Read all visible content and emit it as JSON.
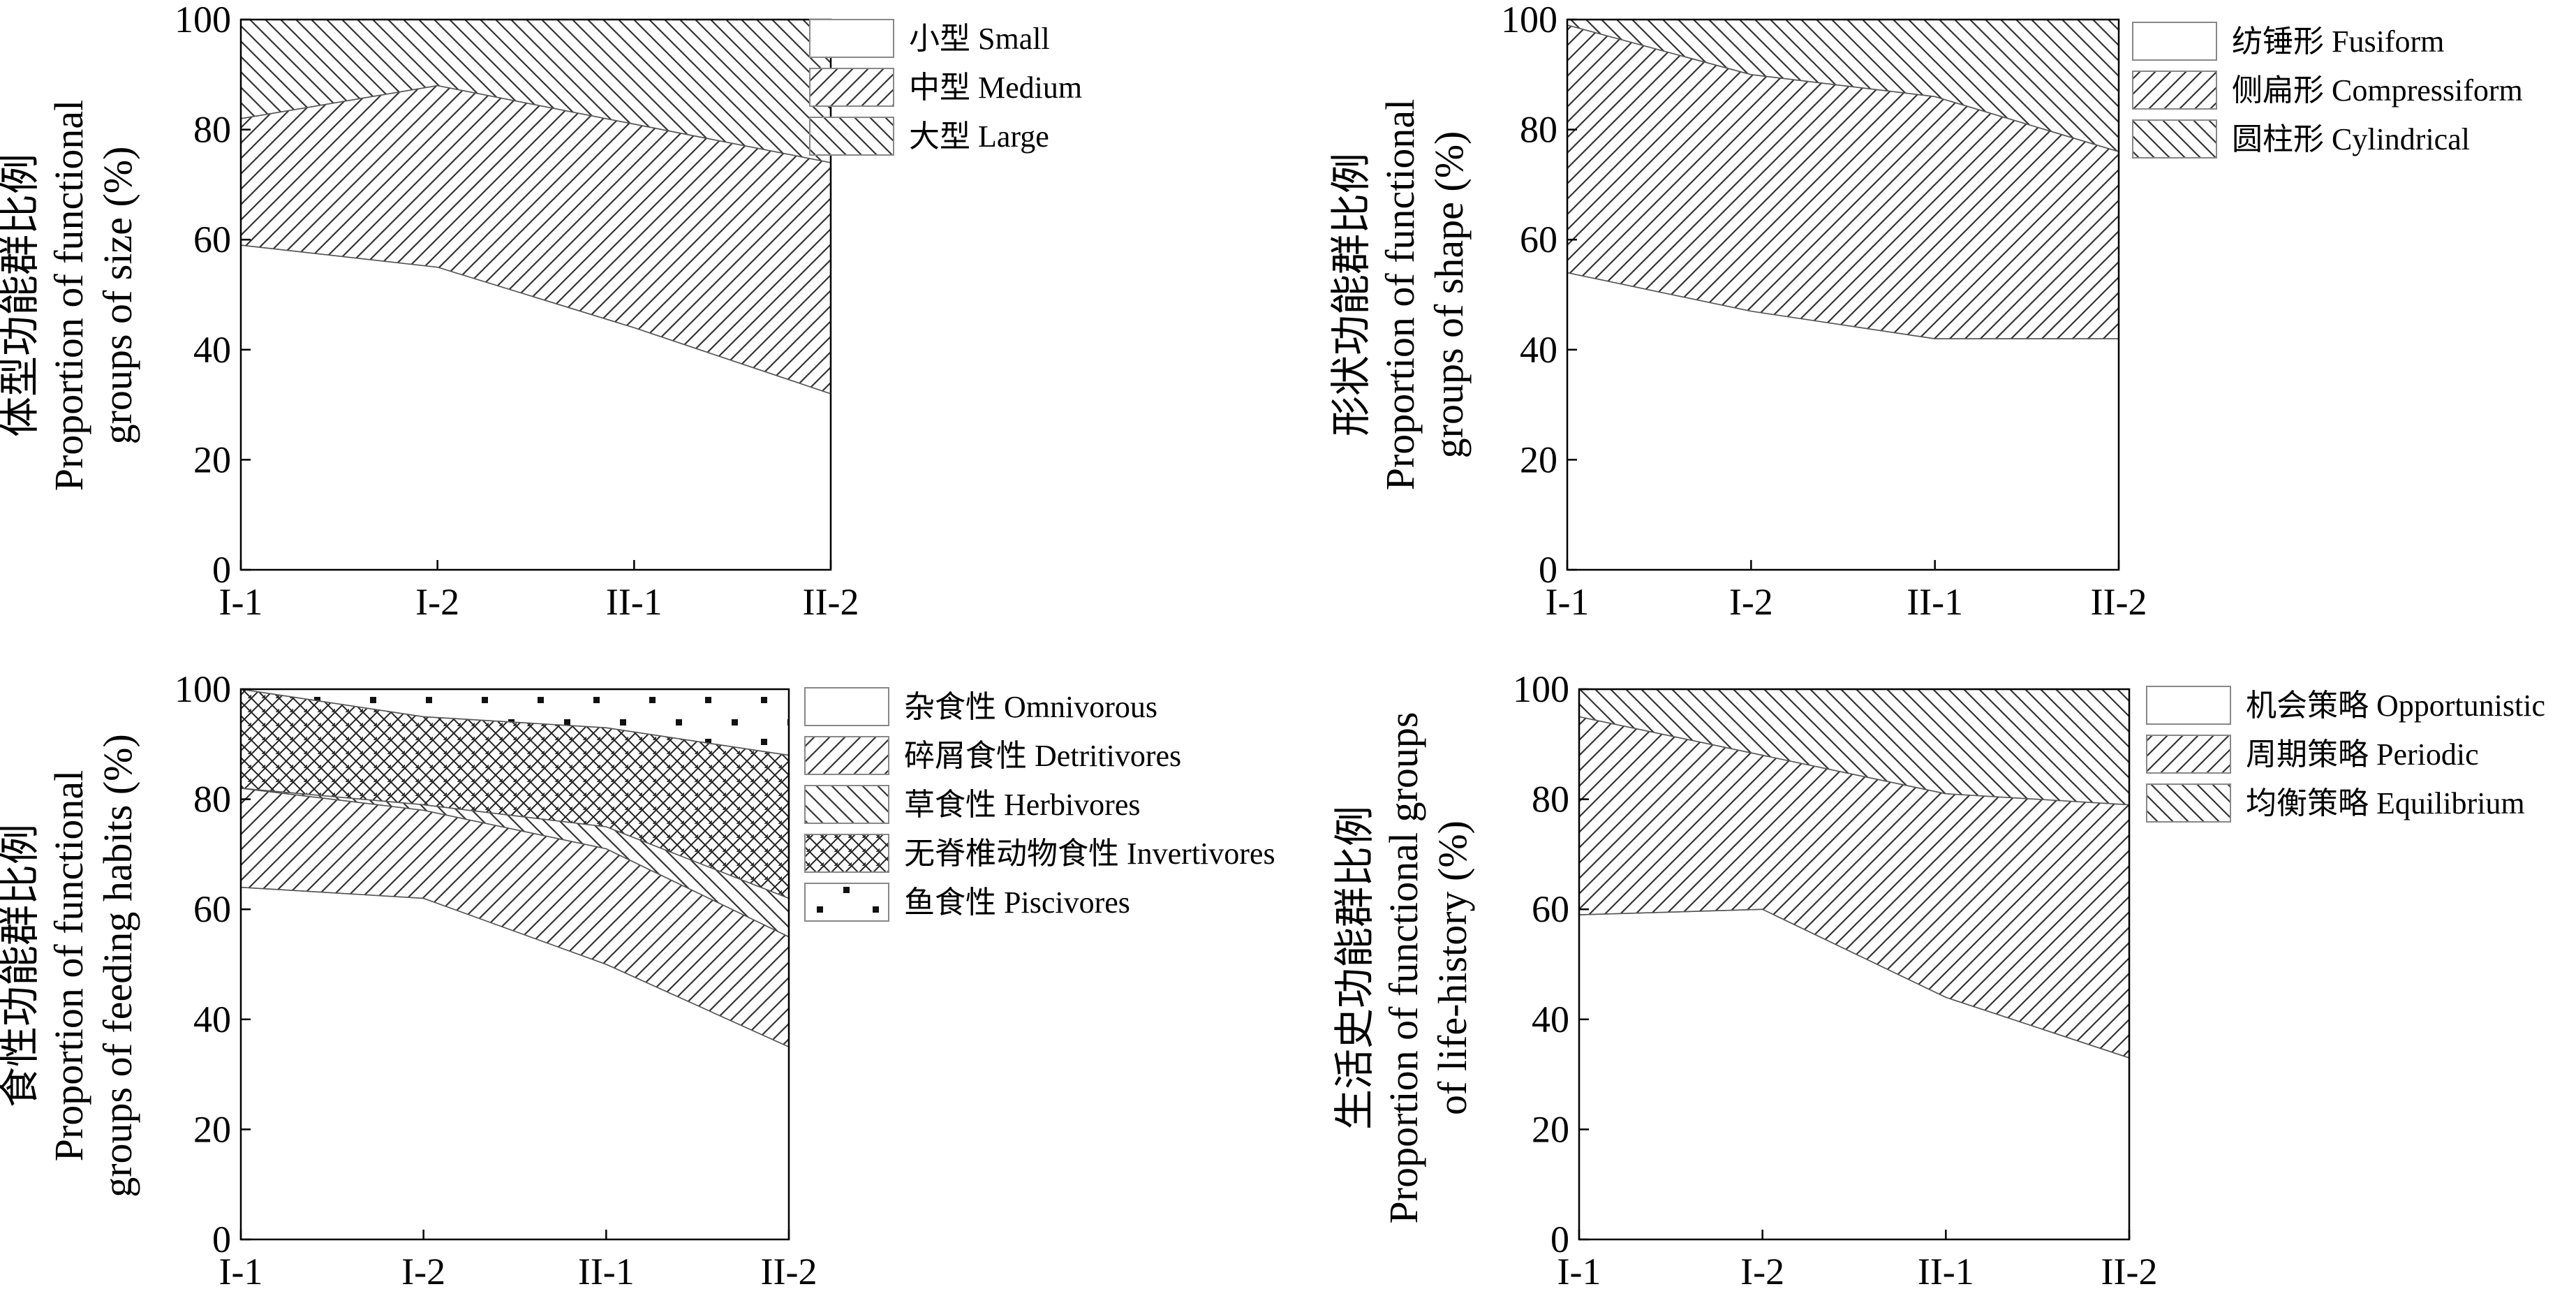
{
  "chart_data": [
    {
      "type": "area",
      "stacked": true,
      "categories": [
        "I-1",
        "I-2",
        "II-1",
        "II-2"
      ],
      "ylim": [
        0,
        100
      ],
      "yticks": [
        0,
        20,
        40,
        60,
        80,
        100
      ],
      "ylabel_lines": [
        "体型功能群比例",
        "Proportion of functional",
        "groups of size (%)"
      ],
      "legend_position": "right",
      "series": [
        {
          "name": "小型 Small",
          "pattern": "none",
          "values": [
            59,
            55,
            44,
            32
          ]
        },
        {
          "name": "中型 Medium",
          "pattern": "fdiag",
          "values": [
            23,
            33,
            37,
            42
          ]
        },
        {
          "name": "大型 Large",
          "pattern": "bdiag",
          "values": [
            18,
            12,
            19,
            26
          ]
        }
      ]
    },
    {
      "type": "area",
      "stacked": true,
      "categories": [
        "I-1",
        "I-2",
        "II-1",
        "II-2"
      ],
      "ylim": [
        0,
        100
      ],
      "yticks": [
        0,
        20,
        40,
        60,
        80,
        100
      ],
      "ylabel_lines": [
        "形状功能群比例",
        "Proportion of functional",
        "groups of shape (%)"
      ],
      "legend_position": "right",
      "series": [
        {
          "name": "纺锤形 Fusiform",
          "pattern": "none",
          "values": [
            54,
            47,
            42,
            42
          ]
        },
        {
          "name": "侧扁形 Compressiform",
          "pattern": "fdiag",
          "values": [
            45,
            43,
            44,
            34
          ]
        },
        {
          "name": "圆柱形 Cylindrical",
          "pattern": "bdiag",
          "values": [
            1,
            10,
            14,
            24
          ]
        }
      ]
    },
    {
      "type": "area",
      "stacked": true,
      "categories": [
        "I-1",
        "I-2",
        "II-1",
        "II-2"
      ],
      "ylim": [
        0,
        100
      ],
      "yticks": [
        0,
        20,
        40,
        60,
        80,
        100
      ],
      "ylabel_lines": [
        "食性功能群比例",
        "Proportion of functional",
        "groups of feeding habits (%)"
      ],
      "legend_position": "right",
      "series": [
        {
          "name": "杂食性 Omnivorous",
          "pattern": "none",
          "values": [
            64,
            62,
            50,
            35
          ]
        },
        {
          "name": "碎屑食性 Detritivores",
          "pattern": "fdiag",
          "values": [
            18,
            16,
            21,
            20
          ]
        },
        {
          "name": "草食性 Herbivores",
          "pattern": "bdiag",
          "values": [
            0,
            1,
            4,
            7
          ]
        },
        {
          "name": "无脊椎动物食性 Invertivores",
          "pattern": "cross",
          "values": [
            18,
            16,
            18,
            26
          ]
        },
        {
          "name": "鱼食性 Piscivores",
          "pattern": "dots",
          "values": [
            0,
            5,
            7,
            12
          ]
        }
      ]
    },
    {
      "type": "area",
      "stacked": true,
      "categories": [
        "I-1",
        "I-2",
        "II-1",
        "II-2"
      ],
      "ylim": [
        0,
        100
      ],
      "yticks": [
        0,
        20,
        40,
        60,
        80,
        100
      ],
      "ylabel_lines": [
        "生活史功能群比例",
        "Proportion of functional groups",
        "of life-history (%)"
      ],
      "legend_position": "right",
      "series": [
        {
          "name": "机会策略 Opportunistic",
          "pattern": "none",
          "values": [
            59,
            60,
            44,
            33
          ]
        },
        {
          "name": "周期策略 Periodic",
          "pattern": "fdiag",
          "values": [
            36,
            28,
            37,
            46
          ]
        },
        {
          "name": "均衡策略 Equilibrium",
          "pattern": "bdiag",
          "values": [
            5,
            12,
            19,
            21
          ]
        }
      ]
    }
  ]
}
